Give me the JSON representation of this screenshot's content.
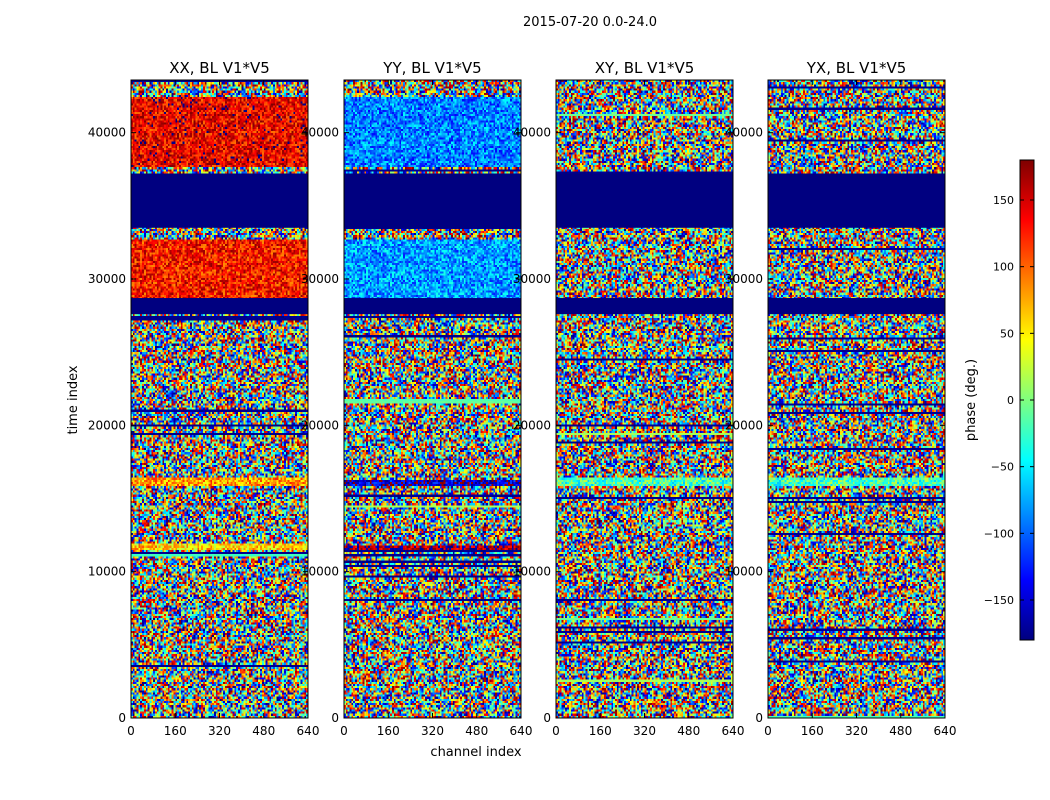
{
  "figure": {
    "suptitle": "2015-07-20 0.0-24.0",
    "xlabel": "channel index",
    "ylabel": "time index"
  },
  "colorbar": {
    "label": "phase (deg.)",
    "range": [
      -180,
      180
    ],
    "ticks": [
      -150,
      -100,
      -50,
      0,
      50,
      100,
      150
    ],
    "tick_labels": [
      "−150",
      "−100",
      "−50",
      "0",
      "50",
      "100",
      "150"
    ],
    "colormap": "jet",
    "colors": [
      "#00007f",
      "#0000ff",
      "#007fff",
      "#00ffff",
      "#7fff7f",
      "#ffff00",
      "#ff7f00",
      "#ff0000",
      "#7f0000"
    ]
  },
  "chart_data": [
    {
      "type": "heatmap",
      "title": "XX, BL V1*V5",
      "xlim": [
        0,
        640
      ],
      "ylim": [
        0,
        43600
      ],
      "x_ticks": [
        0,
        160,
        320,
        480,
        640
      ],
      "y_ticks": [
        0,
        10000,
        20000,
        30000,
        40000
      ],
      "value_range_deg": [
        -180,
        180
      ],
      "features": [
        {
          "label": "flagged (constant low phase)",
          "t_start": 33500,
          "t_end": 37200,
          "phase_deg": -180
        },
        {
          "label": "flagged (constant low phase)",
          "t_start": 27600,
          "t_end": 28700,
          "phase_deg": -180
        },
        {
          "label": "coherent high-phase band",
          "t_start": 37600,
          "t_end": 42500,
          "phase_deg": 140
        },
        {
          "label": "coherent high-phase band",
          "t_start": 28700,
          "t_end": 32700,
          "phase_deg": 130
        },
        {
          "label": "yellow stripe",
          "t_start": 11500,
          "t_end": 11900,
          "phase_deg": 60
        },
        {
          "label": "orange stripe",
          "t_start": 15800,
          "t_end": 16400,
          "phase_deg": 80
        }
      ]
    },
    {
      "type": "heatmap",
      "title": "YY, BL V1*V5",
      "xlim": [
        0,
        640
      ],
      "ylim": [
        0,
        43600
      ],
      "x_ticks": [
        0,
        160,
        320,
        480,
        640
      ],
      "y_ticks": [
        0,
        10000,
        20000,
        30000,
        40000
      ],
      "value_range_deg": [
        -180,
        180
      ],
      "features": [
        {
          "label": "flagged (constant low phase)",
          "t_start": 33500,
          "t_end": 37200,
          "phase_deg": -180
        },
        {
          "label": "flagged (constant low phase)",
          "t_start": 27600,
          "t_end": 28700,
          "phase_deg": -180
        },
        {
          "label": "coherent low-phase band",
          "t_start": 37600,
          "t_end": 42500,
          "phase_deg": -90
        },
        {
          "label": "coherent low-phase band",
          "t_start": 28700,
          "t_end": 32700,
          "phase_deg": -80
        },
        {
          "label": "dark red stripe",
          "t_start": 11500,
          "t_end": 11800,
          "phase_deg": 170
        },
        {
          "label": "blue stripe",
          "t_start": 15800,
          "t_end": 16300,
          "phase_deg": -150
        }
      ]
    },
    {
      "type": "heatmap",
      "title": "XY, BL V1*V5",
      "xlim": [
        0,
        640
      ],
      "ylim": [
        0,
        43600
      ],
      "x_ticks": [
        0,
        160,
        320,
        480,
        640
      ],
      "y_ticks": [
        0,
        10000,
        20000,
        30000,
        40000
      ],
      "value_range_deg": [
        -180,
        180
      ],
      "features": [
        {
          "label": "flagged (constant low phase)",
          "t_start": 33500,
          "t_end": 37200,
          "phase_deg": -180
        },
        {
          "label": "flagged (constant low phase)",
          "t_start": 27600,
          "t_end": 28700,
          "phase_deg": -180
        },
        {
          "label": "green stripe",
          "t_start": 15800,
          "t_end": 16400,
          "phase_deg": -20
        }
      ]
    },
    {
      "type": "heatmap",
      "title": "YX, BL V1*V5",
      "xlim": [
        0,
        640
      ],
      "ylim": [
        0,
        43600
      ],
      "x_ticks": [
        0,
        160,
        320,
        480,
        640
      ],
      "y_ticks": [
        0,
        10000,
        20000,
        30000,
        40000
      ],
      "value_range_deg": [
        -180,
        180
      ],
      "features": [
        {
          "label": "flagged (constant low phase)",
          "t_start": 33500,
          "t_end": 37200,
          "phase_deg": -180
        },
        {
          "label": "flagged (constant low phase)",
          "t_start": 27600,
          "t_end": 28700,
          "phase_deg": -180
        },
        {
          "label": "green stripe",
          "t_start": 15800,
          "t_end": 16400,
          "phase_deg": -20
        }
      ]
    }
  ]
}
